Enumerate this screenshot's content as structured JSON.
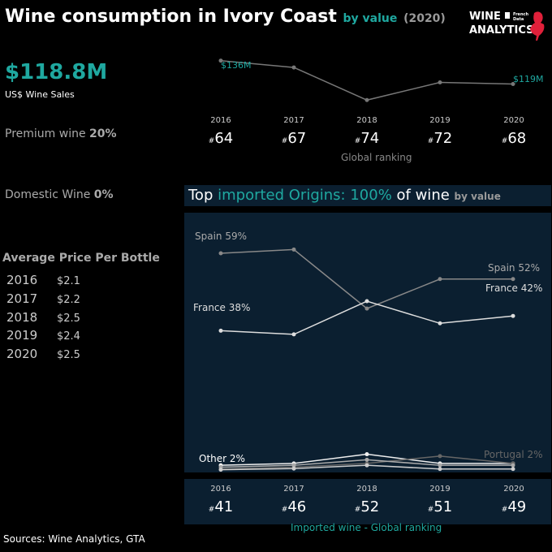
{
  "header": {
    "title": "Wine consumption in Ivory Coast",
    "by_value": "by value",
    "year": "(2020)"
  },
  "logo": {
    "line1": "WINE",
    "line2": "ANALYTICS",
    "tag_french": "French",
    "tag_data": "Data",
    "accent_color": "#e0203a"
  },
  "summary": {
    "sales_value": "$118.8M",
    "sales_label": "US$ Wine Sales",
    "premium_label": "Premium wine",
    "premium_value": "20%",
    "domestic_label": "Domestic Wine",
    "domestic_value": "0%"
  },
  "avg_price": {
    "title": "Average Price Per Bottle",
    "rows": [
      {
        "year": "2016",
        "price": "$2.1"
      },
      {
        "year": "2017",
        "price": "$2.2"
      },
      {
        "year": "2018",
        "price": "$2.5"
      },
      {
        "year": "2019",
        "price": "$2.4"
      },
      {
        "year": "2020",
        "price": "$2.5"
      }
    ]
  },
  "colors": {
    "accent": "#1fa8a0",
    "panel": "#0b1f30",
    "line_gray": "#777777",
    "line_light": "#dddddd"
  },
  "sales_chart": {
    "start_label": "$136M",
    "end_label": "$119M",
    "years": [
      "2016",
      "2017",
      "2018",
      "2019",
      "2020"
    ],
    "global_ranks": [
      "64",
      "67",
      "74",
      "72",
      "68"
    ],
    "rank_caption": "Global ranking",
    "rank_prefix": "#"
  },
  "imports": {
    "title_a": "Top ",
    "title_b": "imported Origins: 100%",
    "title_c": " of wine",
    "title_d": "by value",
    "years": [
      "2016",
      "2017",
      "2018",
      "2019",
      "2020"
    ],
    "ranks": [
      "41",
      "46",
      "52",
      "51",
      "49"
    ],
    "rank_caption": "Imported wine - Global ranking"
  },
  "chart_data": [
    {
      "type": "line",
      "x": [
        "2016",
        "2017",
        "2018",
        "2019",
        "2020"
      ],
      "series": [
        {
          "values": [
            136,
            131,
            107,
            120,
            118.8
          ]
        }
      ],
      "annotations": [
        "$136M",
        "$119M"
      ],
      "ylim": [
        100,
        140
      ],
      "grid": false
    },
    {
      "type": "line",
      "x": [
        "2016",
        "2017",
        "2018",
        "2019",
        "2020"
      ],
      "ylim": [
        0,
        70
      ],
      "grid": false,
      "series": [
        {
          "name": "Spain",
          "values": [
            59,
            60,
            44,
            52,
            52
          ],
          "color": "#888888",
          "start_label": "Spain 59%",
          "end_label": "Spain 52%"
        },
        {
          "name": "France",
          "values": [
            38,
            37,
            46,
            40,
            42
          ],
          "color": "#dddddd",
          "start_label": "France 38%",
          "end_label": "France 42%"
        },
        {
          "name": "Other",
          "values": [
            1.5,
            2,
            4.5,
            2,
            2
          ],
          "color": "#eeeeee",
          "start_label": "Other 2%"
        },
        {
          "name": "Portugal",
          "values": [
            0.5,
            1,
            2,
            4,
            2
          ],
          "color": "#666666",
          "end_label": "Portugal 2%"
        },
        {
          "values": [
            1,
            1.5,
            3,
            1.5,
            1.5
          ],
          "color": "#aaaaaa"
        },
        {
          "values": [
            0.3,
            0.6,
            1.5,
            0.5,
            0.5
          ],
          "color": "#cccccc"
        }
      ]
    }
  ]
}
